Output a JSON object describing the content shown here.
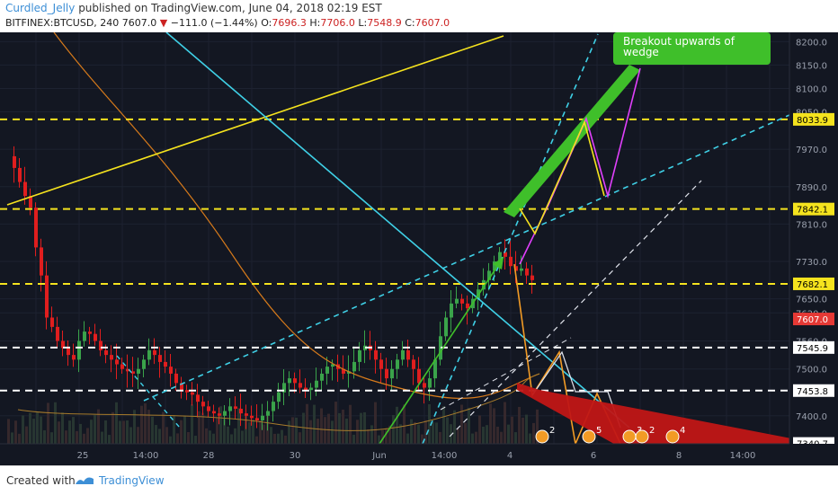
{
  "header": {
    "author": "Curdled_Jelly",
    "published_text": "published on TradingView.com, June 04, 2018 02:19 EST",
    "symbol": "BITFINEX:BTCUSD, 240",
    "last": "7607.0",
    "change_arrow": "▼",
    "change": "−111.0 (−1.44%)",
    "o_label": "O:",
    "o": "7696.3",
    "h_label": "H:",
    "h": "7706.0",
    "l_label": "L:",
    "l": "7548.9",
    "c_label": "C:",
    "c": "7607.0"
  },
  "footer": {
    "created_with": "Created with",
    "brand": "TradingView"
  },
  "chart_data": {
    "type": "candlestick",
    "background": "#131722",
    "price_axis": {
      "ylim": [
        7340,
        8220
      ],
      "ticks": [
        8200,
        8150,
        8100,
        8050,
        7970,
        7890,
        7810,
        7730,
        7650,
        7620,
        7560,
        7500,
        7400
      ],
      "tick_labels": [
        "8200.0",
        "8150.0",
        "8100.0",
        "8050.0",
        "7970.0",
        "7890.0",
        "7810.0",
        "7730.0",
        "7650.0",
        "7620.0",
        "7560.0",
        "7500.0",
        "7400.0"
      ]
    },
    "time_axis": {
      "labels": [
        "25",
        "14:00",
        "28",
        "30",
        "Jun",
        "14:00",
        "4",
        "6",
        "8",
        "14:00"
      ]
    },
    "price_badges": [
      {
        "price": 8033.9,
        "label": "8033.9",
        "color": "#f5e31e"
      },
      {
        "price": 7842.1,
        "label": "7842.1",
        "color": "#f5e31e"
      },
      {
        "price": 7682.1,
        "label": "7682.1",
        "color": "#f5e31e"
      },
      {
        "price": 7607.0,
        "label": "7607.0",
        "color": "#e53935"
      },
      {
        "price": 7545.9,
        "label": "7545.9",
        "color": "#ffffff"
      },
      {
        "price": 7453.8,
        "label": "7453.8",
        "color": "#ffffff"
      },
      {
        "price": 7340.7,
        "label": "7340.7",
        "color": "#ffffff"
      }
    ],
    "horizontal_levels": [
      {
        "price": 8033.9,
        "color": "#f5e31e",
        "dashed": true
      },
      {
        "price": 7842.1,
        "color": "#f5e31e",
        "dashed": true
      },
      {
        "price": 7682.1,
        "color": "#f5e31e",
        "dashed": true
      },
      {
        "price": 7545.9,
        "color": "#ffffff",
        "dashed": true
      },
      {
        "price": 7453.8,
        "color": "#ffffff",
        "dashed": true
      }
    ],
    "annotation": {
      "text_line1": "Breakout upwards of",
      "text_line2": "wedge",
      "color": "#3fbf2a"
    },
    "event_markers": [
      "2",
      "5",
      "3",
      "2",
      "4"
    ],
    "colors": {
      "up": "#3aa34a",
      "down": "#e01e1e",
      "cyan": "#3fd0e6",
      "yellow": "#f5e31e",
      "magenta": "#e040fb",
      "orange": "#f29b25",
      "green": "#3fbf2a",
      "white": "#e0e3eb"
    }
  }
}
